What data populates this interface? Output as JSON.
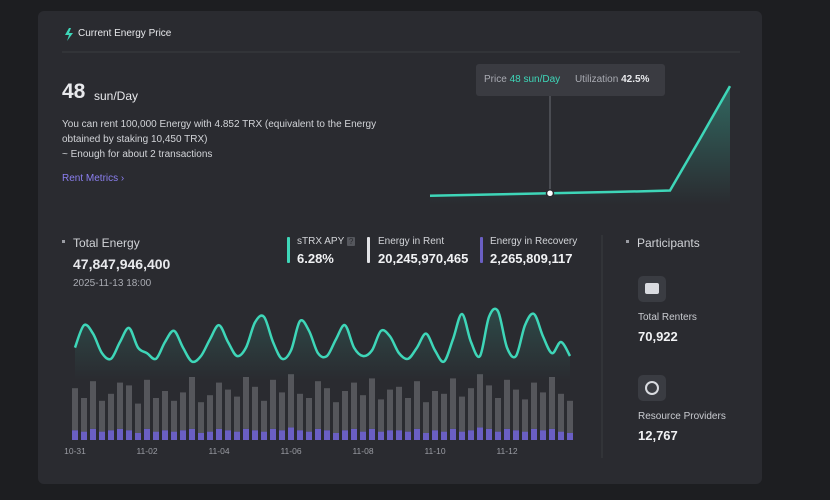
{
  "header": {
    "title": "Current Energy Price"
  },
  "price": {
    "value": "48",
    "unit": "sun/Day",
    "description": [
      "You can rent 100,000 Energy with 4.852 TRX (equivalent to the Energy",
      "obtained by staking 10,450 TRX)",
      "~ Enough for about 2 transactions"
    ],
    "link": "Rent Metrics"
  },
  "tooltip": {
    "price_label": "Price",
    "price_value": "48 sun/Day",
    "utilization_label": "Utilization",
    "utilization_value": "42.5%"
  },
  "price_chart": {
    "type": "line",
    "color": "#3ed6b8",
    "ylim": [
      0,
      110
    ],
    "marker_index": 4,
    "values": [
      4,
      4.6,
      5.2,
      5.8,
      6.4,
      7,
      7.6,
      8.2,
      9,
      58,
      108
    ]
  },
  "total_energy": {
    "label": "Total Energy",
    "value": "47,847,946,400",
    "timestamp": "2025-11-13 18:00"
  },
  "stats": [
    {
      "label": "sTRX APY",
      "value": "6.28%"
    },
    {
      "label": "Energy in Rent",
      "value": "20,245,970,465"
    },
    {
      "label": "Energy in Recovery",
      "value": "2,265,809,117"
    }
  ],
  "energy_chart": {
    "type": "line-bar",
    "ylim": [
      0,
      100
    ],
    "categories": [
      "10-31",
      null,
      null,
      null,
      null,
      null,
      null,
      null,
      "11-02",
      null,
      null,
      null,
      null,
      null,
      null,
      null,
      "11-04",
      null,
      null,
      null,
      null,
      null,
      null,
      null,
      "11-06",
      null,
      null,
      null,
      null,
      null,
      null,
      null,
      "11-08",
      null,
      null,
      null,
      null,
      null,
      null,
      null,
      "11-10",
      null,
      null,
      null,
      null,
      null,
      null,
      null,
      "11-12",
      null,
      null,
      null,
      null,
      null,
      null,
      null
    ],
    "line": {
      "color": "#3ed6b8",
      "values": [
        66,
        82,
        76,
        62,
        58,
        70,
        80,
        66,
        62,
        58,
        70,
        78,
        66,
        56,
        60,
        72,
        82,
        70,
        60,
        66,
        84,
        88,
        70,
        58,
        64,
        85,
        78,
        62,
        60,
        72,
        82,
        66,
        60,
        64,
        78,
        74,
        62,
        58,
        66,
        76,
        64,
        56,
        72,
        90,
        70,
        60,
        88,
        92,
        66,
        60,
        82,
        90,
        74,
        62,
        70,
        60
      ]
    },
    "bars": [
      {
        "color": "#6a5fc4",
        "values": [
          7,
          6,
          8,
          6,
          7,
          8,
          7,
          5,
          8,
          6,
          7,
          6,
          7,
          8,
          5,
          6,
          8,
          7,
          6,
          8,
          7,
          6,
          8,
          7,
          9,
          7,
          6,
          8,
          7,
          5,
          7,
          8,
          6,
          8,
          6,
          7,
          7,
          6,
          8,
          5,
          7,
          6,
          8,
          6,
          7,
          9,
          8,
          6,
          8,
          7,
          6,
          8,
          7,
          8,
          6,
          5
        ]
      },
      {
        "color": "#55565b",
        "values": [
          30,
          24,
          34,
          22,
          26,
          33,
          32,
          21,
          35,
          24,
          28,
          22,
          27,
          37,
          22,
          26,
          33,
          29,
          25,
          37,
          31,
          22,
          35,
          27,
          38,
          26,
          24,
          34,
          30,
          22,
          28,
          33,
          26,
          36,
          23,
          29,
          31,
          24,
          34,
          22,
          28,
          27,
          36,
          25,
          30,
          38,
          31,
          24,
          35,
          29,
          23,
          33,
          27,
          37,
          27,
          23
        ]
      }
    ]
  },
  "participants": {
    "title": "Participants",
    "items": [
      {
        "label": "Total Renters",
        "value": "70,922"
      },
      {
        "label": "Resource Providers",
        "value": "12,767"
      }
    ]
  }
}
